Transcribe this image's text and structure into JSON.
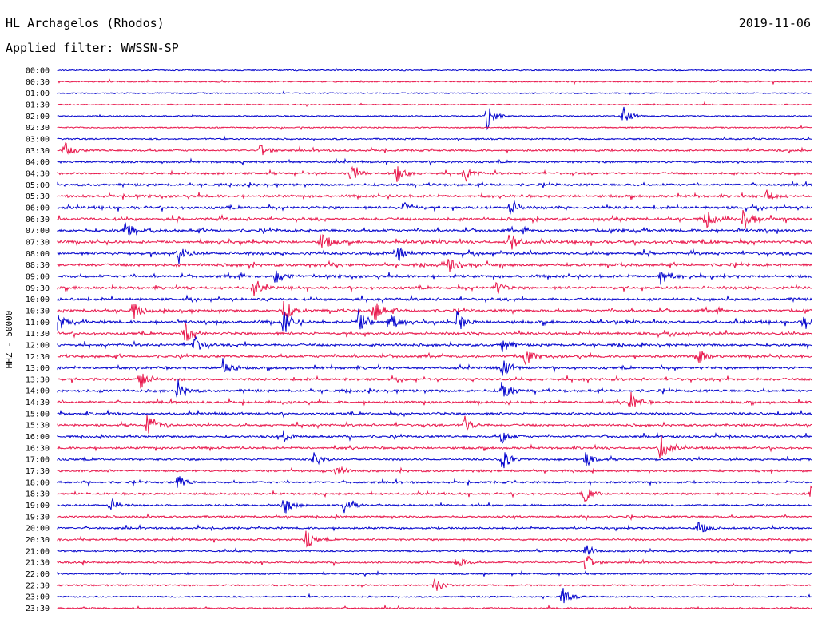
{
  "header": {
    "station": "HL Archagelos (Rhodos)",
    "filter": "Applied filter: WWSSN-SP",
    "date": "2019-11-06"
  },
  "chart_data": {
    "type": "line",
    "ylabel": "HHZ - 50000",
    "rows": [
      "00:00",
      "00:30",
      "01:00",
      "01:30",
      "02:00",
      "02:30",
      "03:00",
      "03:30",
      "04:00",
      "04:30",
      "05:00",
      "05:30",
      "06:00",
      "06:30",
      "07:00",
      "07:30",
      "08:00",
      "08:30",
      "09:00",
      "09:30",
      "10:00",
      "10:30",
      "11:00",
      "11:30",
      "12:00",
      "12:30",
      "13:00",
      "13:30",
      "14:00",
      "14:30",
      "15:00",
      "15:30",
      "16:00",
      "16:30",
      "17:00",
      "17:30",
      "18:00",
      "18:30",
      "19:00",
      "19:30",
      "20:00",
      "20:30",
      "21:00",
      "21:30",
      "22:00",
      "22:30",
      "23:00",
      "23:30"
    ],
    "row_colors": [
      "#0000cc",
      "#e8154a"
    ],
    "activity": [
      0.08,
      0.08,
      0.06,
      0.05,
      0.06,
      0.08,
      0.15,
      0.3,
      0.35,
      0.4,
      0.45,
      0.5,
      0.55,
      0.6,
      0.6,
      0.6,
      0.6,
      0.6,
      0.55,
      0.55,
      0.5,
      0.55,
      0.6,
      0.55,
      0.5,
      0.5,
      0.5,
      0.5,
      0.5,
      0.45,
      0.45,
      0.4,
      0.4,
      0.4,
      0.35,
      0.35,
      0.35,
      0.35,
      0.3,
      0.3,
      0.3,
      0.3,
      0.25,
      0.25,
      0.2,
      0.2,
      0.15,
      0.15
    ],
    "events": [
      {
        "row": 4,
        "t": 0.57,
        "a": 16
      },
      {
        "row": 4,
        "t": 0.75,
        "a": 14
      },
      {
        "row": 7,
        "t": 0.01,
        "a": 10
      },
      {
        "row": 7,
        "t": 0.27,
        "a": 8
      },
      {
        "row": 9,
        "t": 0.39,
        "a": 12
      },
      {
        "row": 9,
        "t": 0.45,
        "a": 12
      },
      {
        "row": 9,
        "t": 0.54,
        "a": 10
      },
      {
        "row": 11,
        "t": 0.94,
        "a": 10
      },
      {
        "row": 12,
        "t": 0.46,
        "a": 10
      },
      {
        "row": 12,
        "t": 0.6,
        "a": 12
      },
      {
        "row": 13,
        "t": 0.86,
        "a": 12
      },
      {
        "row": 13,
        "t": 0.91,
        "a": 14
      },
      {
        "row": 14,
        "t": 0.09,
        "a": 12
      },
      {
        "row": 15,
        "t": 0.35,
        "a": 14
      },
      {
        "row": 15,
        "t": 0.6,
        "a": 14
      },
      {
        "row": 16,
        "t": 0.16,
        "a": 14
      },
      {
        "row": 16,
        "t": 0.45,
        "a": 12
      },
      {
        "row": 17,
        "t": 0.52,
        "a": 12
      },
      {
        "row": 18,
        "t": 0.29,
        "a": 12
      },
      {
        "row": 18,
        "t": 0.8,
        "a": 12
      },
      {
        "row": 19,
        "t": 0.26,
        "a": 10
      },
      {
        "row": 19,
        "t": 0.58,
        "a": 10
      },
      {
        "row": 21,
        "t": 0.1,
        "a": 12
      },
      {
        "row": 21,
        "t": 0.3,
        "a": 16
      },
      {
        "row": 21,
        "t": 0.42,
        "a": 16
      },
      {
        "row": 22,
        "t": 0.0,
        "a": 12
      },
      {
        "row": 22,
        "t": 0.3,
        "a": 18
      },
      {
        "row": 22,
        "t": 0.4,
        "a": 20
      },
      {
        "row": 22,
        "t": 0.44,
        "a": 16
      },
      {
        "row": 22,
        "t": 0.53,
        "a": 14
      },
      {
        "row": 22,
        "t": 0.99,
        "a": 10
      },
      {
        "row": 23,
        "t": 0.17,
        "a": 14
      },
      {
        "row": 24,
        "t": 0.18,
        "a": 14
      },
      {
        "row": 24,
        "t": 0.59,
        "a": 10
      },
      {
        "row": 25,
        "t": 0.62,
        "a": 12
      },
      {
        "row": 25,
        "t": 0.85,
        "a": 12
      },
      {
        "row": 26,
        "t": 0.22,
        "a": 14
      },
      {
        "row": 26,
        "t": 0.59,
        "a": 14
      },
      {
        "row": 27,
        "t": 0.11,
        "a": 16
      },
      {
        "row": 28,
        "t": 0.16,
        "a": 12
      },
      {
        "row": 28,
        "t": 0.59,
        "a": 14
      },
      {
        "row": 29,
        "t": 0.76,
        "a": 14
      },
      {
        "row": 31,
        "t": 0.12,
        "a": 18
      },
      {
        "row": 31,
        "t": 0.54,
        "a": 12
      },
      {
        "row": 32,
        "t": 0.3,
        "a": 8
      },
      {
        "row": 32,
        "t": 0.59,
        "a": 10
      },
      {
        "row": 33,
        "t": 0.8,
        "a": 18
      },
      {
        "row": 34,
        "t": 0.34,
        "a": 10
      },
      {
        "row": 34,
        "t": 0.59,
        "a": 14
      },
      {
        "row": 34,
        "t": 0.7,
        "a": 10
      },
      {
        "row": 35,
        "t": 0.37,
        "a": 10
      },
      {
        "row": 36,
        "t": 0.16,
        "a": 10
      },
      {
        "row": 37,
        "t": 0.7,
        "a": 12
      },
      {
        "row": 37,
        "t": 1.0,
        "a": 14
      },
      {
        "row": 38,
        "t": 0.07,
        "a": 10
      },
      {
        "row": 38,
        "t": 0.3,
        "a": 14
      },
      {
        "row": 38,
        "t": 0.38,
        "a": 10
      },
      {
        "row": 40,
        "t": 0.85,
        "a": 10
      },
      {
        "row": 41,
        "t": 0.33,
        "a": 12
      },
      {
        "row": 42,
        "t": 0.7,
        "a": 10
      },
      {
        "row": 43,
        "t": 0.53,
        "a": 10
      },
      {
        "row": 43,
        "t": 0.7,
        "a": 12
      },
      {
        "row": 45,
        "t": 0.5,
        "a": 10
      },
      {
        "row": 46,
        "t": 0.67,
        "a": 12
      }
    ]
  }
}
